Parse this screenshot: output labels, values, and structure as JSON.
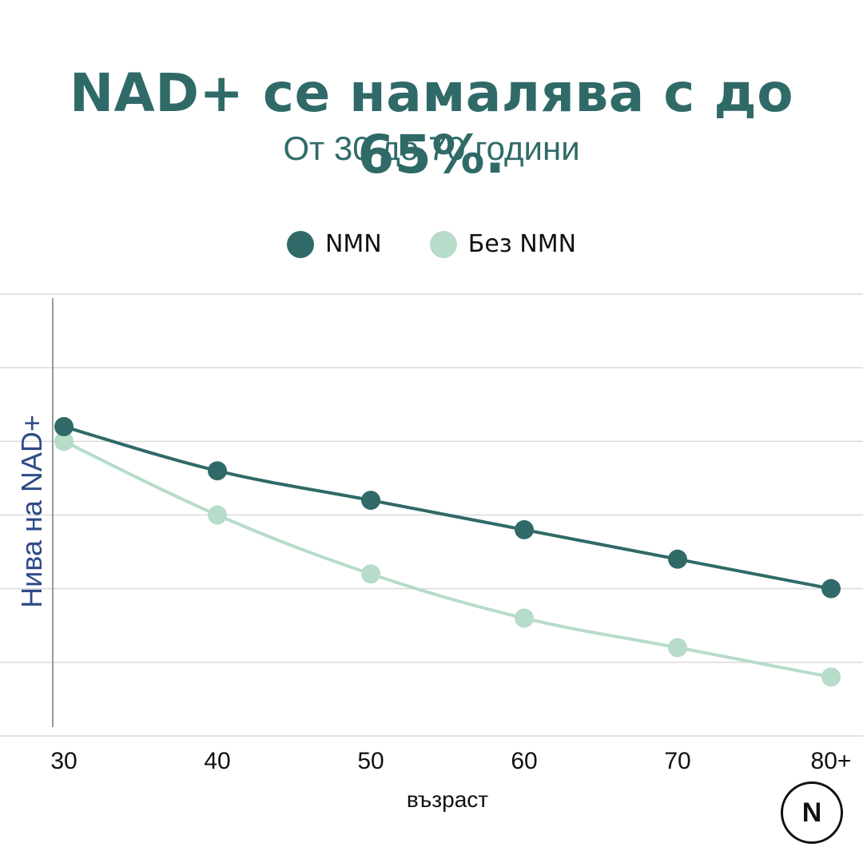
{
  "title": "NAD+ се намалява с до 65%.",
  "subtitle": "От 30 до 70 години",
  "logo": {
    "letter": "N"
  },
  "colors": {
    "nmn": "#2f6a68",
    "without_nmn": "#b7dcc9",
    "grid": "#d9d9d9",
    "axis": "#999999",
    "ylabel": "#2d4b86"
  },
  "chart_data": {
    "type": "line",
    "title": "NAD+ се намалява с до 65%.",
    "subtitle": "От 30 до 70 години",
    "xlabel": "възраст",
    "ylabel": "Нива на NAD+",
    "categories": [
      "30",
      "40",
      "50",
      "60",
      "70",
      "80+"
    ],
    "series": [
      {
        "name": "NMN",
        "values": [
          4.2,
          3.6,
          3.2,
          2.8,
          2.4,
          2.0
        ],
        "color": "#2f6a68"
      },
      {
        "name": "Без NMN",
        "values": [
          4.0,
          3.0,
          2.2,
          1.6,
          1.2,
          0.8
        ],
        "color": "#b7dcc9"
      }
    ],
    "ylim": [
      0,
      6
    ],
    "grid": true,
    "y_tick_labels_shown": false,
    "legend_position": "top-center"
  }
}
